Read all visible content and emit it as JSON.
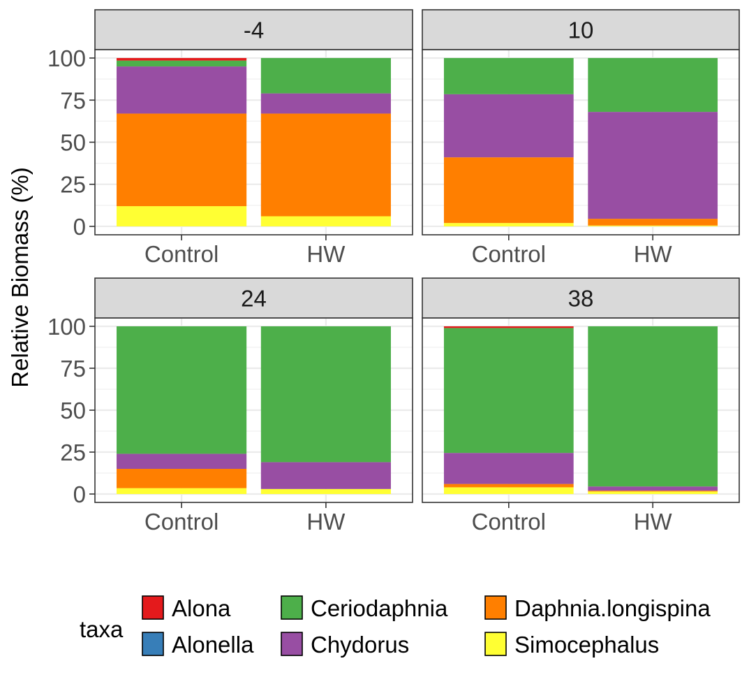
{
  "chart_data": {
    "type": "bar",
    "stacked": true,
    "ylabel": "Relative Biomass (%)",
    "ylim": [
      0,
      100
    ],
    "yticks": [
      0,
      25,
      50,
      75,
      100
    ],
    "categories": [
      "Control",
      "HW"
    ],
    "legend": {
      "title": "taxa",
      "placement": "bottom",
      "items": [
        {
          "name": "Alona",
          "color": "#e41a1c"
        },
        {
          "name": "Alonella",
          "color": "#377eb8"
        },
        {
          "name": "Ceriodaphnia",
          "color": "#4daf4a"
        },
        {
          "name": "Chydorus",
          "color": "#984ea3"
        },
        {
          "name": "Daphnia.longispina",
          "color": "#ff7f00"
        },
        {
          "name": "Simocephalus",
          "color": "#ffff33"
        }
      ]
    },
    "stack_order_bottom_to_top": [
      "Simocephalus",
      "Daphnia.longispina",
      "Chydorus",
      "Ceriodaphnia",
      "Alonella",
      "Alona"
    ],
    "panels": [
      {
        "label": "-4",
        "bars": {
          "Control": {
            "Simocephalus": 12,
            "Daphnia.longispina": 55,
            "Chydorus": 28,
            "Ceriodaphnia": 3.5,
            "Alonella": 0,
            "Alona": 1.5
          },
          "HW": {
            "Simocephalus": 6,
            "Daphnia.longispina": 61,
            "Chydorus": 12,
            "Ceriodaphnia": 21,
            "Alonella": 0,
            "Alona": 0
          }
        }
      },
      {
        "label": "10",
        "bars": {
          "Control": {
            "Simocephalus": 2,
            "Daphnia.longispina": 39,
            "Chydorus": 37.5,
            "Ceriodaphnia": 21.5,
            "Alonella": 0,
            "Alona": 0
          },
          "HW": {
            "Simocephalus": 0.5,
            "Daphnia.longispina": 4,
            "Chydorus": 63.5,
            "Ceriodaphnia": 32,
            "Alonella": 0,
            "Alona": 0
          }
        }
      },
      {
        "label": "24",
        "bars": {
          "Control": {
            "Simocephalus": 3.5,
            "Daphnia.longispina": 11.5,
            "Chydorus": 9,
            "Ceriodaphnia": 76,
            "Alonella": 0,
            "Alona": 0
          },
          "HW": {
            "Simocephalus": 3,
            "Daphnia.longispina": 0,
            "Chydorus": 16,
            "Ceriodaphnia": 81,
            "Alonella": 0,
            "Alona": 0
          }
        }
      },
      {
        "label": "38",
        "bars": {
          "Control": {
            "Simocephalus": 4,
            "Daphnia.longispina": 2,
            "Chydorus": 18.5,
            "Ceriodaphnia": 74.5,
            "Alonella": 0,
            "Alona": 1
          },
          "HW": {
            "Simocephalus": 1.5,
            "Daphnia.longispina": 0.5,
            "Chydorus": 2.5,
            "Ceriodaphnia": 95.5,
            "Alonella": 0,
            "Alona": 0
          }
        }
      }
    ]
  }
}
